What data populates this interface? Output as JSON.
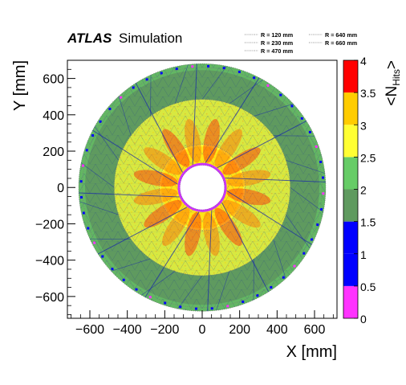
{
  "header": {
    "experiment": "ATLAS",
    "label": "Simulation"
  },
  "legend": [
    {
      "label": "R = 120 mm",
      "color": "#888888"
    },
    {
      "label": "R = 230 mm",
      "color": "#888888"
    },
    {
      "label": "R = 470 mm",
      "color": "#888888"
    },
    {
      "label": "R = 640 mm",
      "color": "#888888"
    },
    {
      "label": "R = 660 mm",
      "color": "#888888"
    }
  ],
  "chart_data": {
    "type": "heatmap",
    "xlabel": "X [mm]",
    "ylabel": "Y [mm]",
    "zlabel_main": "<N",
    "zlabel_sub": "Hits",
    "zlabel_end": ">",
    "xlim": [
      -720,
      720
    ],
    "ylim": [
      -720,
      700
    ],
    "xticks": [
      -600,
      -400,
      -200,
      0,
      200,
      400,
      600
    ],
    "xtick_labels": [
      "−600",
      "−400",
      "−200",
      "0",
      "200",
      "400",
      "600"
    ],
    "yticks": [
      -600,
      -400,
      -200,
      0,
      200,
      400,
      600
    ],
    "ytick_labels": [
      "−600",
      "−400",
      "−200",
      "0",
      "200",
      "400",
      "600"
    ],
    "zlim": [
      0,
      4
    ],
    "zticks": [
      0,
      0.5,
      1,
      1.5,
      2,
      2.5,
      3,
      3.5,
      4
    ],
    "ztick_labels": [
      "0",
      "0.5",
      "1",
      "1.5",
      "2",
      "2.5",
      "3",
      "3.5",
      "4"
    ],
    "palette": [
      {
        "range": [
          0,
          0.5
        ],
        "color": "#ff33ff"
      },
      {
        "range": [
          0.5,
          1
        ],
        "color": "#0000ff"
      },
      {
        "range": [
          1,
          1.5
        ],
        "color": "#0000ff"
      },
      {
        "range": [
          1.5,
          2
        ],
        "color": "#5f9a5f"
      },
      {
        "range": [
          2,
          2.5
        ],
        "color": "#66cc66"
      },
      {
        "range": [
          2.5,
          3
        ],
        "color": "#ffff33"
      },
      {
        "range": [
          3,
          3.5
        ],
        "color": "#ffcc00"
      },
      {
        "range": [
          3.5,
          4
        ],
        "color": "#ff0000"
      }
    ],
    "regions": [
      {
        "r_min": 120,
        "r_max": 230,
        "mean_hits": 3.0
      },
      {
        "r_min": 230,
        "r_max": 470,
        "mean_hits": 2.6
      },
      {
        "r_min": 470,
        "r_max": 660,
        "mean_hits": 1.8
      }
    ],
    "circles_mm": [
      120,
      230,
      470,
      640,
      660
    ]
  }
}
